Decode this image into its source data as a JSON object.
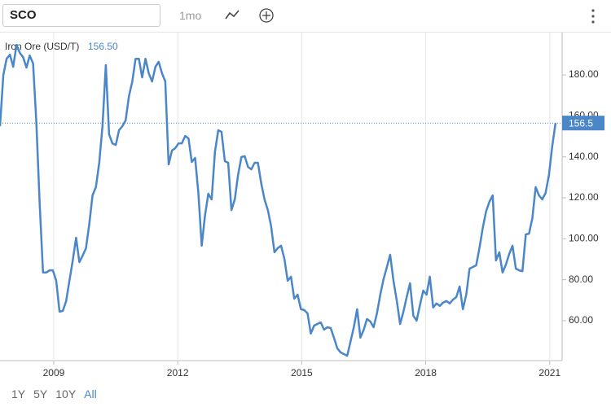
{
  "ui": {
    "symbol": "SCO",
    "interval": "1mo",
    "ranges": [
      "1Y",
      "5Y",
      "10Y",
      "All"
    ],
    "active_range": 3
  },
  "chart_data": {
    "type": "line",
    "x": [
      2007.7,
      2007.78,
      2007.86,
      2007.94,
      2008.02,
      2008.1,
      2008.18,
      2008.26,
      2008.34,
      2008.42,
      2008.5,
      2008.58,
      2008.66,
      2008.74,
      2008.82,
      2008.9,
      2008.98,
      2009.06,
      2009.14,
      2009.22,
      2009.3,
      2009.38,
      2009.46,
      2009.54,
      2009.62,
      2009.7,
      2009.78,
      2009.86,
      2009.94,
      2010.02,
      2010.1,
      2010.18,
      2010.26,
      2010.34,
      2010.42,
      2010.5,
      2010.58,
      2010.66,
      2010.74,
      2010.82,
      2010.9,
      2010.98,
      2011.06,
      2011.14,
      2011.22,
      2011.3,
      2011.38,
      2011.46,
      2011.54,
      2011.62,
      2011.7,
      2011.78,
      2011.86,
      2011.94,
      2012.02,
      2012.1,
      2012.18,
      2012.26,
      2012.34,
      2012.42,
      2012.5,
      2012.58,
      2012.66,
      2012.74,
      2012.82,
      2012.9,
      2012.98,
      2013.06,
      2013.14,
      2013.22,
      2013.3,
      2013.38,
      2013.46,
      2013.54,
      2013.62,
      2013.7,
      2013.78,
      2013.86,
      2013.94,
      2014.02,
      2014.1,
      2014.18,
      2014.26,
      2014.34,
      2014.42,
      2014.5,
      2014.58,
      2014.66,
      2014.74,
      2014.82,
      2014.9,
      2014.98,
      2015.06,
      2015.14,
      2015.22,
      2015.3,
      2015.38,
      2015.46,
      2015.54,
      2015.62,
      2015.7,
      2015.78,
      2015.86,
      2015.94,
      2016.02,
      2016.1,
      2016.18,
      2016.26,
      2016.34,
      2016.42,
      2016.5,
      2016.58,
      2016.66,
      2016.74,
      2016.82,
      2016.9,
      2016.98,
      2017.06,
      2017.14,
      2017.22,
      2017.3,
      2017.38,
      2017.46,
      2017.54,
      2017.62,
      2017.7,
      2017.78,
      2017.86,
      2017.94,
      2018.02,
      2018.1,
      2018.18,
      2018.26,
      2018.34,
      2018.42,
      2018.5,
      2018.58,
      2018.66,
      2018.74,
      2018.82,
      2018.9,
      2018.98,
      2019.06,
      2019.14,
      2019.22,
      2019.3,
      2019.38,
      2019.46,
      2019.54,
      2019.62,
      2019.7,
      2019.78,
      2019.86,
      2019.94,
      2020.02,
      2020.1,
      2020.18,
      2020.26,
      2020.34,
      2020.42,
      2020.5,
      2020.58,
      2020.66,
      2020.74,
      2020.82,
      2020.9,
      2020.98,
      2021.06,
      2021.14
    ],
    "series": [
      {
        "name": "Iron Ore (USD/T)",
        "color": "#4a86c8",
        "legend_value_label": "156.50",
        "values": [
          155.0,
          180,
          187.9,
          189.9,
          184.0,
          194.7,
          190.7,
          188.7,
          183.6,
          189.5,
          185.6,
          157.0,
          117.2,
          83.5,
          83.5,
          84.6,
          84.6,
          79.5,
          64.4,
          64.8,
          69.6,
          79.5,
          89.4,
          100.5,
          88.6,
          91.8,
          95.3,
          107.2,
          121.2,
          125.2,
          137.1,
          155.0,
          184.8,
          151.0,
          146.6,
          145.8,
          153.0,
          155.0,
          157.8,
          169.7,
          176.8,
          187.9,
          187.9,
          178.8,
          187.9,
          180.8,
          176.8,
          184.0,
          186.4,
          180.8,
          176.8,
          136.3,
          143.1,
          144.2,
          146.6,
          146.6,
          150.2,
          149.0,
          137.5,
          139.5,
          122.4,
          96.6,
          111.3,
          122.0,
          119.2,
          142.3,
          153.0,
          152.2,
          137.9,
          137.1,
          114.0,
          119.2,
          131.1,
          139.9,
          140.3,
          135.1,
          133.9,
          137.1,
          137.1,
          127.2,
          119.2,
          114.0,
          106.1,
          93.4,
          95.4,
          96.6,
          90.2,
          79.5,
          81.5,
          70.7,
          72.7,
          65.6,
          65.2,
          63.6,
          53.7,
          57.6,
          58.4,
          59.2,
          55.6,
          56.8,
          56.4,
          51.7,
          46.5,
          44.5,
          43.7,
          42.9,
          49.7,
          56.8,
          65.6,
          51.7,
          55.6,
          60.8,
          59.6,
          56.8,
          63.6,
          72.7,
          80.3,
          86.2,
          92.2,
          79.5,
          69.6,
          58.4,
          64.4,
          71.5,
          78.3,
          62.4,
          60.0,
          67.6,
          74.7,
          72.7,
          81.5,
          66.4,
          68.4,
          67.2,
          68.8,
          69.6,
          68.4,
          70.3,
          71.5,
          76.7,
          65.6,
          72.7,
          85.4,
          86.2,
          87.0,
          95.4,
          105.3,
          113.3,
          118.0,
          121.2,
          89.4,
          93.4,
          83.5,
          87.4,
          92.6,
          96.6,
          85.4,
          84.6,
          84.2,
          102.1,
          102.5,
          110.1,
          125.2,
          121.2,
          119.2,
          122.4,
          131.1,
          145.0,
          156.5
        ]
      }
    ],
    "xlim": [
      2007.7,
      2021.3
    ],
    "xticks": [
      2009,
      2012,
      2015,
      2018,
      2021
    ],
    "ylim": [
      40.5,
      200.7
    ],
    "yticks": [
      {
        "value": 60,
        "label": "60.00"
      },
      {
        "value": 80,
        "label": "80.00"
      },
      {
        "value": 100,
        "label": "100.00"
      },
      {
        "value": 120,
        "label": "120.00"
      },
      {
        "value": 140,
        "label": "140.00"
      },
      {
        "value": 160,
        "label": "160.00"
      },
      {
        "value": 180,
        "label": "180.00"
      }
    ],
    "grid": true,
    "y_axis_side": "right"
  }
}
